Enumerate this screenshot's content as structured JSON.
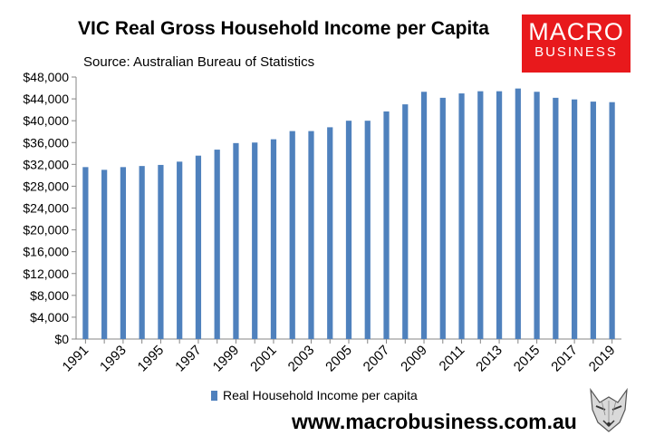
{
  "title": "VIC Real Gross Household Income per Capita",
  "subtitle": "Source: Australian Bureau of Statistics",
  "logo": {
    "line1": "MACRO",
    "line2": "BUSINESS",
    "color": "#e8191c"
  },
  "website": "www.macrobusiness.com.au",
  "legend": {
    "label": "Real Household Income per capita",
    "color": "#4f81bd"
  },
  "chart_data": {
    "type": "bar",
    "title": "VIC Real Gross Household Income per Capita",
    "subtitle": "Source: Australian Bureau of Statistics",
    "xlabel": "",
    "ylabel": "",
    "ylim": [
      0,
      48000
    ],
    "yticks": [
      0,
      4000,
      8000,
      12000,
      16000,
      20000,
      24000,
      28000,
      32000,
      36000,
      40000,
      44000,
      48000
    ],
    "ytick_labels": [
      "$0",
      "$4,000",
      "$8,000",
      "$12,000",
      "$16,000",
      "$20,000",
      "$24,000",
      "$28,000",
      "$32,000",
      "$36,000",
      "$40,000",
      "$44,000",
      "$48,000"
    ],
    "categories": [
      "1991",
      "1992",
      "1993",
      "1994",
      "1995",
      "1996",
      "1997",
      "1998",
      "1999",
      "2000",
      "2001",
      "2002",
      "2003",
      "2004",
      "2005",
      "2006",
      "2007",
      "2008",
      "2009",
      "2010",
      "2011",
      "2012",
      "2013",
      "2014",
      "2015",
      "2016",
      "2017",
      "2018",
      "2019"
    ],
    "xtick_labels": [
      "1991",
      "1993",
      "1995",
      "1997",
      "1999",
      "2001",
      "2003",
      "2005",
      "2007",
      "2009",
      "2011",
      "2013",
      "2015",
      "2017",
      "2019"
    ],
    "series": [
      {
        "name": "Real Household Income per capita",
        "color": "#4f81bd",
        "values": [
          31500,
          31000,
          31500,
          31700,
          31900,
          32500,
          33600,
          34700,
          35900,
          36000,
          36600,
          38100,
          38100,
          38800,
          40000,
          40000,
          41700,
          43000,
          45300,
          44200,
          45000,
          45400,
          45400,
          45900,
          45300,
          44200,
          43900,
          43500,
          43400
        ]
      }
    ],
    "grid": false,
    "legend_position": "bottom"
  }
}
